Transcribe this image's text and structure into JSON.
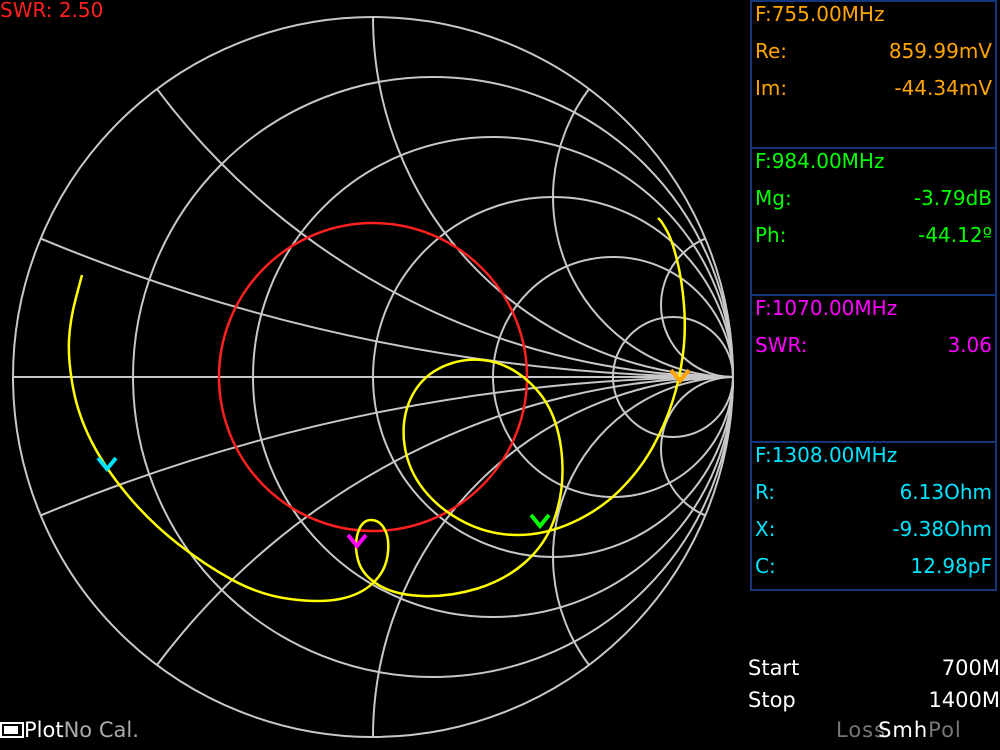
{
  "header": {
    "swr_label": "SWR: 2.50"
  },
  "colors": {
    "grid": "#c8c8c8",
    "swr_circle": "#ff2020",
    "trace": "#ffff00",
    "panel_border": "#14357a"
  },
  "markers": [
    {
      "color": "#ffa500",
      "freq": "F:755.00MHz",
      "rows": [
        {
          "label": "Re:",
          "value": "859.99mV"
        },
        {
          "label": "Im:",
          "value": "-44.34mV"
        }
      ]
    },
    {
      "color": "#00ff00",
      "freq": "F:984.00MHz",
      "rows": [
        {
          "label": "Mg:",
          "value": "-3.79dB"
        },
        {
          "label": "Ph:",
          "value": "-44.12º"
        }
      ]
    },
    {
      "color": "#ff00ff",
      "freq": "F:1070.00MHz",
      "rows": [
        {
          "label": "SWR:",
          "value": "3.06"
        }
      ]
    },
    {
      "color": "#00e5ff",
      "freq": "F:1308.00MHz",
      "rows": [
        {
          "label": "R:",
          "value": "6.13Ohm"
        },
        {
          "label": "X:",
          "value": "-9.38Ohm"
        },
        {
          "label": "C:",
          "value": "12.98pF"
        }
      ]
    }
  ],
  "sweep": {
    "start_label": "Start",
    "start_value": "700M",
    "stop_label": "Stop",
    "stop_value": "1400M"
  },
  "footer": {
    "plot": "Plot",
    "cal": "No Cal.",
    "loss": "Loss",
    "smh": "Smh",
    "pol": "Pol"
  }
}
